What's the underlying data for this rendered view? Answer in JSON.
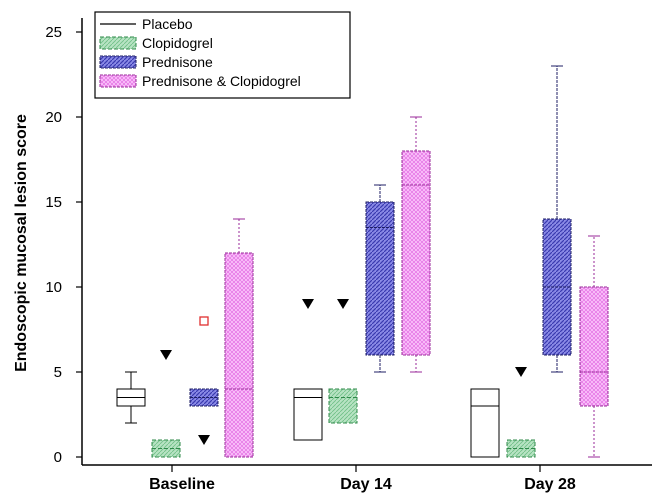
{
  "chart_data": {
    "type": "boxplot",
    "ylabel": "Endoscopic mucosal lesion score",
    "ylim": [
      0,
      25
    ],
    "yticks": [
      "0",
      "5",
      "10",
      "15",
      "20",
      "25"
    ],
    "categories": [
      "Baseline",
      "Day 14",
      "Day 28"
    ],
    "legend_position": "top-left",
    "series": [
      {
        "name": "Placebo",
        "color": "#000000",
        "fill": "none",
        "boxes": [
          {
            "min": 2,
            "q1": 3,
            "median": 3.5,
            "q3": 4,
            "max": 5
          },
          {
            "min": 1,
            "q1": 1,
            "median": 3.5,
            "q3": 4,
            "max": 4
          },
          {
            "min": 0,
            "q1": 0,
            "median": 3,
            "q3": 4,
            "max": 4
          }
        ]
      },
      {
        "name": "Clopidogrel",
        "color": "#3c9a5a",
        "fill": "#a5d8b4",
        "boxes": [
          {
            "min": 0,
            "q1": 0,
            "median": 0.5,
            "q3": 1,
            "max": 1
          },
          {
            "min": 2,
            "q1": 2,
            "median": 3.5,
            "q3": 4,
            "max": 4
          },
          {
            "min": 0,
            "q1": 0,
            "median": 0.5,
            "q3": 1,
            "max": 1
          }
        ]
      },
      {
        "name": "Prednisone",
        "color": "#2b2b7a",
        "fill": "#5b5bd6",
        "boxes": [
          {
            "min": 3,
            "q1": 3,
            "median": 3.5,
            "q3": 4,
            "max": 4
          },
          {
            "min": 5,
            "q1": 6,
            "median": 13.5,
            "q3": 15,
            "max": 16
          },
          {
            "min": 5,
            "q1": 6,
            "median": 10,
            "q3": 14,
            "max": 23
          }
        ]
      },
      {
        "name": "Prednisone & Clopidogrel",
        "color": "#a13aa1",
        "fill": "#f28ef2",
        "boxes": [
          {
            "min": 0,
            "q1": 0,
            "median": 4,
            "q3": 12,
            "max": 14
          },
          {
            "min": 5,
            "q1": 6,
            "median": 16,
            "q3": 18,
            "max": 20
          },
          {
            "min": 0,
            "q1": 3,
            "median": 5,
            "q3": 10,
            "max": 13
          }
        ]
      }
    ],
    "markers": [
      {
        "category": "Baseline",
        "series": "Clopidogrel",
        "shape": "triangle-down",
        "y": 6
      },
      {
        "category": "Baseline",
        "series": "Prednisone",
        "shape": "triangle-down",
        "y": 1
      },
      {
        "category": "Baseline",
        "series": "Prednisone",
        "shape": "square-open-red",
        "y": 8
      },
      {
        "category": "Day 14",
        "series": "Placebo",
        "shape": "triangle-down",
        "y": 9
      },
      {
        "category": "Day 14",
        "series": "Clopidogrel",
        "shape": "triangle-down",
        "y": 9
      },
      {
        "category": "Day 28",
        "series": "Clopidogrel",
        "shape": "triangle-down",
        "y": 5
      }
    ]
  }
}
